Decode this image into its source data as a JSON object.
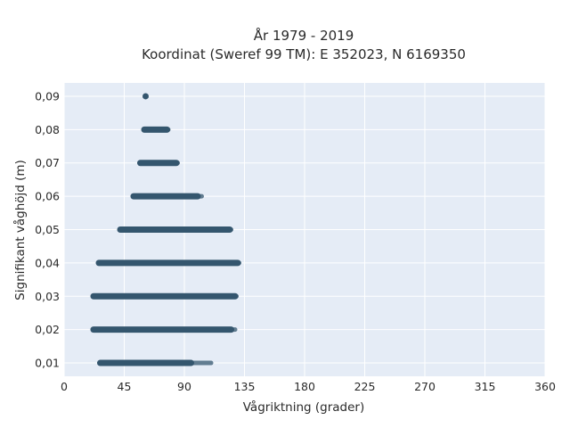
{
  "chart_data": {
    "type": "scatter",
    "title": "År 1979 - 2019",
    "subtitle": "Koordinat (Sweref 99 TM): E 352023, N 6169350",
    "xlabel": "Vågriktning (grader)",
    "ylabel": "Signifikant våghöjd (m)",
    "xlim": [
      0,
      360
    ],
    "ylim": [
      0.006,
      0.094
    ],
    "xticks": [
      0,
      45,
      90,
      135,
      180,
      225,
      270,
      315,
      360
    ],
    "xtick_labels": [
      "0",
      "45",
      "90",
      "135",
      "180",
      "225",
      "270",
      "315",
      "360"
    ],
    "yticks": [
      0.01,
      0.02,
      0.03,
      0.04,
      0.05,
      0.06,
      0.07,
      0.08,
      0.09
    ],
    "ytick_labels": [
      "0,01",
      "0,02",
      "0,03",
      "0,04",
      "0,05",
      "0,06",
      "0,07",
      "0,08",
      "0,09"
    ],
    "grid": true,
    "legend": false,
    "marker_color": "#34566e",
    "background_color": "#e5ecf6",
    "series": [
      {
        "y": 0.01,
        "x_min": 27,
        "x_max": 110,
        "dense_x_max": 95
      },
      {
        "y": 0.02,
        "x_min": 22,
        "x_max": 128,
        "dense_x_max": 125
      },
      {
        "y": 0.03,
        "x_min": 22,
        "x_max": 129,
        "dense_x_max": 128
      },
      {
        "y": 0.04,
        "x_min": 26,
        "x_max": 131,
        "dense_x_max": 130
      },
      {
        "y": 0.05,
        "x_min": 42,
        "x_max": 125,
        "dense_x_max": 124
      },
      {
        "y": 0.06,
        "x_min": 52,
        "x_max": 103,
        "dense_x_max": 100
      },
      {
        "y": 0.07,
        "x_min": 57,
        "x_max": 85,
        "dense_x_max": 84
      },
      {
        "y": 0.08,
        "x_min": 60,
        "x_max": 78,
        "dense_x_max": 77
      },
      {
        "y": 0.09,
        "x_min": 61,
        "x_max": 61,
        "dense_x_max": 61
      }
    ]
  }
}
